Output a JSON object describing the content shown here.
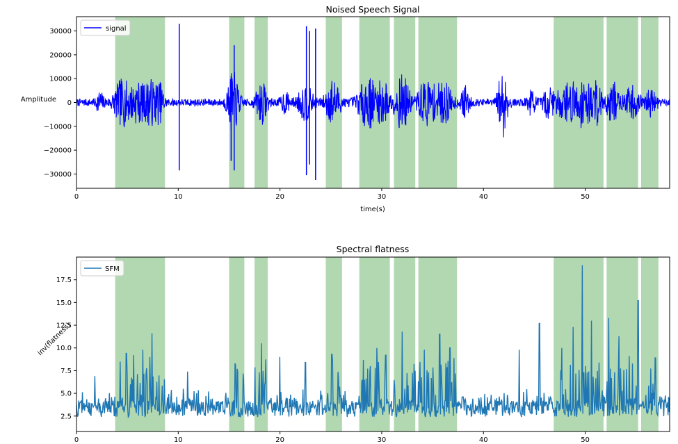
{
  "chart_data": [
    {
      "type": "line",
      "title": "Noised Speech Signal",
      "xlabel": "time(s)",
      "ylabel": "Amplitude",
      "xlim": [
        0,
        58.3
      ],
      "ylim": [
        -36000,
        36000
      ],
      "xticks": [
        0,
        10,
        20,
        30,
        40,
        50
      ],
      "xtick_labels": [
        "0",
        "10",
        "20",
        "30",
        "40",
        "50"
      ],
      "yticks": [
        30000,
        20000,
        10000,
        0,
        -10000,
        -20000,
        -30000
      ],
      "ytick_labels": [
        "30000",
        "20000",
        "10000",
        "0",
        "−10000",
        "−20000",
        "−30000"
      ],
      "legend": "top-left",
      "series": [
        {
          "name": "signal",
          "color": "#0000ff",
          "noise_amplitude": 1500,
          "bursts": [
            {
              "center": 2.3,
              "width": 0.25,
              "amp": 4000
            },
            {
              "center": 4.5,
              "width": 0.6,
              "amp": 9000
            },
            {
              "center": 6.0,
              "width": 0.5,
              "amp": 7000
            },
            {
              "center": 7.3,
              "width": 0.5,
              "amp": 8500
            },
            {
              "center": 8.2,
              "width": 0.3,
              "amp": 6000
            },
            {
              "center": 15.4,
              "width": 0.4,
              "amp": 12000
            },
            {
              "center": 18.2,
              "width": 0.4,
              "amp": 8000
            },
            {
              "center": 20.5,
              "width": 0.3,
              "amp": 4000
            },
            {
              "center": 22.5,
              "width": 0.5,
              "amp": 7000
            },
            {
              "center": 25.2,
              "width": 0.5,
              "amp": 9000
            },
            {
              "center": 28.7,
              "width": 0.7,
              "amp": 10000
            },
            {
              "center": 30.2,
              "width": 0.4,
              "amp": 8000
            },
            {
              "center": 32.0,
              "width": 0.5,
              "amp": 11000
            },
            {
              "center": 34.4,
              "width": 0.6,
              "amp": 9000
            },
            {
              "center": 36.1,
              "width": 0.6,
              "amp": 8000
            },
            {
              "center": 38.2,
              "width": 0.3,
              "amp": 6000
            },
            {
              "center": 41.9,
              "width": 0.35,
              "amp": 14000
            },
            {
              "center": 44.7,
              "width": 0.3,
              "amp": 5000
            },
            {
              "center": 46.4,
              "width": 0.35,
              "amp": 7000
            },
            {
              "center": 48.0,
              "width": 0.6,
              "amp": 7000
            },
            {
              "center": 49.6,
              "width": 0.7,
              "amp": 9000
            },
            {
              "center": 51.0,
              "width": 0.5,
              "amp": 8000
            },
            {
              "center": 52.7,
              "width": 0.4,
              "amp": 9000
            },
            {
              "center": 54.6,
              "width": 0.5,
              "amp": 7000
            },
            {
              "center": 56.5,
              "width": 0.4,
              "amp": 5000
            }
          ],
          "spikes": [
            {
              "x": 10.1,
              "min": -28500,
              "max": 33000
            },
            {
              "x": 15.2,
              "min": -24500,
              "max": 11000
            },
            {
              "x": 15.5,
              "min": -28500,
              "max": 24000
            },
            {
              "x": 22.6,
              "min": -30500,
              "max": 32000
            },
            {
              "x": 22.9,
              "min": -26000,
              "max": 30000
            },
            {
              "x": 23.5,
              "min": -32500,
              "max": 31000
            }
          ]
        }
      ],
      "highlight_regions": [
        [
          3.8,
          8.7
        ],
        [
          15.0,
          16.5
        ],
        [
          17.5,
          18.8
        ],
        [
          24.5,
          26.1
        ],
        [
          27.8,
          30.8
        ],
        [
          31.2,
          33.3
        ],
        [
          33.6,
          37.4
        ],
        [
          46.9,
          51.8
        ],
        [
          52.1,
          55.2
        ],
        [
          55.5,
          57.2
        ]
      ],
      "highlight_color": "#b2d8b2"
    },
    {
      "type": "line",
      "title": "Spectral flatness",
      "xlabel": "",
      "ylabel": "inv(flatness)",
      "xlim": [
        0,
        58.3
      ],
      "ylim": [
        0.8,
        20.0
      ],
      "xticks": [
        0,
        10,
        20,
        30,
        40,
        50
      ],
      "xtick_labels": [
        "0",
        "10",
        "20",
        "30",
        "40",
        "50"
      ],
      "yticks": [
        2.5,
        5.0,
        7.5,
        10.0,
        12.5,
        15.0,
        17.5
      ],
      "ytick_labels": [
        "2.5",
        "5.0",
        "7.5",
        "10.0",
        "12.5",
        "15.0",
        "17.5"
      ],
      "legend": "top-left",
      "series": [
        {
          "name": "SFM",
          "color": "#1f77b4",
          "baseline": 3.3,
          "noise_amplitude": 1.3,
          "peaks": [
            {
              "x": 1.8,
              "y": 6.9
            },
            {
              "x": 4.3,
              "y": 8.5
            },
            {
              "x": 4.9,
              "y": 9.4
            },
            {
              "x": 5.6,
              "y": 9.2
            },
            {
              "x": 6.5,
              "y": 9.8
            },
            {
              "x": 7.2,
              "y": 9.0
            },
            {
              "x": 7.4,
              "y": 11.6
            },
            {
              "x": 10.5,
              "y": 5.5
            },
            {
              "x": 10.9,
              "y": 7.4
            },
            {
              "x": 15.6,
              "y": 8.3
            },
            {
              "x": 18.2,
              "y": 10.5
            },
            {
              "x": 20.0,
              "y": 9.0
            },
            {
              "x": 22.5,
              "y": 8.4
            },
            {
              "x": 25.1,
              "y": 9.3
            },
            {
              "x": 28.2,
              "y": 8.0
            },
            {
              "x": 29.5,
              "y": 10.0
            },
            {
              "x": 30.4,
              "y": 9.2
            },
            {
              "x": 32.0,
              "y": 11.8
            },
            {
              "x": 34.2,
              "y": 9.8
            },
            {
              "x": 35.7,
              "y": 11.5
            },
            {
              "x": 36.7,
              "y": 10.0
            },
            {
              "x": 43.5,
              "y": 9.8
            },
            {
              "x": 45.5,
              "y": 12.7
            },
            {
              "x": 47.7,
              "y": 10.0
            },
            {
              "x": 48.8,
              "y": 12.3
            },
            {
              "x": 49.7,
              "y": 19.1
            },
            {
              "x": 50.6,
              "y": 13.0
            },
            {
              "x": 52.3,
              "y": 13.3
            },
            {
              "x": 53.3,
              "y": 11.3
            },
            {
              "x": 55.2,
              "y": 15.2
            },
            {
              "x": 56.9,
              "y": 8.9
            }
          ]
        }
      ],
      "highlight_regions": [
        [
          3.8,
          8.7
        ],
        [
          15.0,
          16.5
        ],
        [
          17.5,
          18.8
        ],
        [
          24.5,
          26.1
        ],
        [
          27.8,
          30.8
        ],
        [
          31.2,
          33.3
        ],
        [
          33.6,
          37.4
        ],
        [
          46.9,
          51.8
        ],
        [
          52.1,
          55.2
        ],
        [
          55.5,
          57.2
        ]
      ],
      "highlight_color": "#b2d8b2"
    }
  ]
}
